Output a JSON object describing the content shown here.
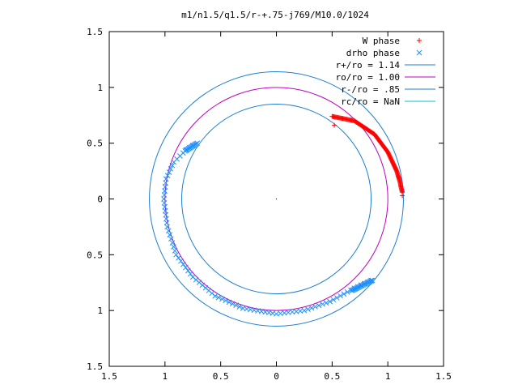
{
  "chart_data": {
    "type": "scatter",
    "title": "m1/n1.5/q1.5/r-+.75-j769/M10.0/1024",
    "xlabel": "",
    "ylabel": "",
    "xlim": [
      -1.5,
      1.5
    ],
    "ylim": [
      -1.5,
      1.5
    ],
    "x_ticks": [
      "1.5",
      "1",
      "0.5",
      "0",
      "0.5",
      "1",
      "1.5"
    ],
    "y_ticks": [
      "1.5",
      "1",
      "0.5",
      "0",
      "0.5",
      "1",
      "1.5"
    ],
    "grid": false,
    "legend_position": "top-right",
    "colors": {
      "w_phase": "#ff0000",
      "drho_phase": "#1e90ff",
      "r_plus": "#1f7fd0",
      "r_o": "#c000c0",
      "r_minus": "#1f7fd0",
      "r_c": "#00c0e0"
    },
    "circles": [
      {
        "name": "r+/ro = 1.14",
        "radius": 1.14
      },
      {
        "name": "ro/ro = 1.00",
        "radius": 1.0
      },
      {
        "name": "r-/ro = .85",
        "radius": 0.85
      },
      {
        "name": "rc/ro = NaN",
        "radius": null
      }
    ],
    "series": [
      {
        "name": "W phase",
        "marker": "plus",
        "angle_range_deg": [
          2,
          55
        ],
        "points": [
          [
            1.13,
            0.06
          ],
          [
            1.12,
            0.1
          ],
          [
            1.11,
            0.15
          ],
          [
            1.08,
            0.25
          ],
          [
            1.0,
            0.42
          ],
          [
            0.88,
            0.58
          ],
          [
            0.7,
            0.7
          ],
          [
            0.5,
            0.74
          ]
        ]
      },
      {
        "name": "drho phase",
        "marker": "x",
        "points": [
          [
            -0.75,
            0.48
          ],
          [
            -0.81,
            0.44
          ],
          [
            -0.92,
            0.33
          ],
          [
            -0.99,
            0.18
          ],
          [
            -1.01,
            0.0
          ],
          [
            -0.98,
            -0.25
          ],
          [
            -0.9,
            -0.5
          ],
          [
            -0.75,
            -0.7
          ],
          [
            -0.55,
            -0.87
          ],
          [
            -0.3,
            -0.98
          ],
          [
            0.0,
            -1.03
          ],
          [
            0.25,
            -1.0
          ],
          [
            0.48,
            -0.92
          ],
          [
            0.7,
            -0.8
          ],
          [
            0.85,
            -0.73
          ]
        ]
      }
    ]
  }
}
